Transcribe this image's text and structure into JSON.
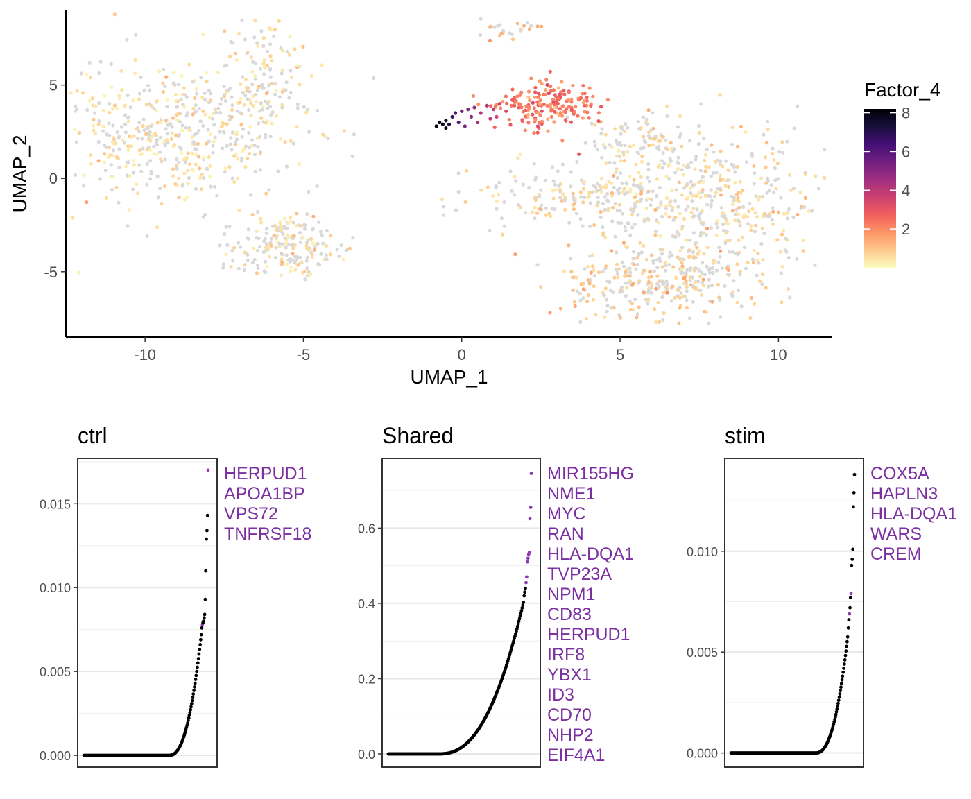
{
  "chart_data": [
    {
      "type": "scatter",
      "name": "umap",
      "xlabel": "UMAP_1",
      "ylabel": "UMAP_2",
      "xlim": [
        -12.5,
        11.7
      ],
      "ylim": [
        -8.5,
        9.0
      ],
      "xticks": [
        "-10",
        "-5",
        "0",
        "5",
        "10"
      ],
      "xtick_values": [
        -10,
        -5,
        0,
        5,
        10
      ],
      "yticks": [
        "-5",
        "0",
        "5"
      ],
      "ytick_values": [
        -5,
        0,
        5
      ],
      "grid": false,
      "legend": {
        "title": "Factor_4",
        "placement": "right",
        "ticks": [
          "2",
          "4",
          "6",
          "8"
        ],
        "tick_values": [
          2,
          4,
          6,
          8
        ],
        "range": [
          0,
          8.2
        ],
        "colors": [
          "#fcfdbf",
          "#fec98d",
          "#fd9567",
          "#f1605d",
          "#cd4071",
          "#9e2f7f",
          "#721f81",
          "#440f76",
          "#180f3d",
          "#000004"
        ]
      },
      "background_color": "#d9d9d9",
      "clusters": [
        {
          "cx": -9.0,
          "cy": 2.5,
          "sx": 2.0,
          "sy": 1.8,
          "n": 520,
          "factor_mean": 0.15
        },
        {
          "cx": -6.2,
          "cy": 5.5,
          "sx": 0.8,
          "sy": 2.0,
          "n": 120,
          "factor_mean": 0.2
        },
        {
          "cx": -5.6,
          "cy": -3.6,
          "sx": 0.9,
          "sy": 0.9,
          "n": 200,
          "factor_mean": 0.2
        },
        {
          "cx": 1.5,
          "cy": 8.0,
          "sx": 0.6,
          "sy": 0.3,
          "n": 25,
          "factor_mean": 0.8
        },
        {
          "cx": 6.3,
          "cy": -5.5,
          "sx": 1.6,
          "sy": 1.0,
          "n": 320,
          "factor_mean": 0.5
        },
        {
          "cx": 8.0,
          "cy": -1.0,
          "sx": 1.7,
          "sy": 1.9,
          "n": 400,
          "factor_mean": 0.3
        },
        {
          "cx": 3.8,
          "cy": -1.0,
          "sx": 1.8,
          "sy": 0.8,
          "n": 200,
          "factor_mean": 0.3
        },
        {
          "cx": 5.5,
          "cy": 2.0,
          "sx": 1.0,
          "sy": 0.8,
          "n": 90,
          "factor_mean": 0.3
        }
      ],
      "high_points": [
        {
          "x": -0.8,
          "y": 2.8,
          "v": 8.0
        },
        {
          "x": -0.6,
          "y": 2.9,
          "v": 7.8
        },
        {
          "x": -0.5,
          "y": 3.1,
          "v": 7.5
        },
        {
          "x": -0.7,
          "y": 3.0,
          "v": 7.9
        },
        {
          "x": -0.4,
          "y": 2.9,
          "v": 7.2
        },
        {
          "x": -0.3,
          "y": 3.3,
          "v": 6.8
        },
        {
          "x": -0.5,
          "y": 2.7,
          "v": 7.6
        },
        {
          "x": -0.2,
          "y": 3.5,
          "v": 6.2
        },
        {
          "x": 0.0,
          "y": 3.6,
          "v": 5.5
        },
        {
          "x": -0.1,
          "y": 3.0,
          "v": 6.0
        },
        {
          "x": 0.2,
          "y": 3.7,
          "v": 5.0
        },
        {
          "x": 0.4,
          "y": 3.8,
          "v": 4.6
        },
        {
          "x": 0.3,
          "y": 3.3,
          "v": 4.8
        },
        {
          "x": 0.6,
          "y": 3.5,
          "v": 4.2
        },
        {
          "x": 0.8,
          "y": 3.9,
          "v": 4.0
        },
        {
          "x": 1.0,
          "y": 3.7,
          "v": 3.8
        },
        {
          "x": 1.2,
          "y": 4.0,
          "v": 3.6
        },
        {
          "x": 1.4,
          "y": 3.6,
          "v": 3.4
        },
        {
          "x": 0.9,
          "y": 3.2,
          "v": 3.9
        },
        {
          "x": 1.6,
          "y": 4.2,
          "v": 3.0
        },
        {
          "x": 1.8,
          "y": 3.8,
          "v": 2.8
        },
        {
          "x": 0.1,
          "y": 2.8,
          "v": 5.2
        },
        {
          "x": 0.5,
          "y": 3.0,
          "v": 4.5
        },
        {
          "x": 1.1,
          "y": 3.3,
          "v": 3.5
        },
        {
          "x": 2.4,
          "y": 2.8,
          "v": 3.2
        },
        {
          "x": 3.7,
          "y": 1.3,
          "v": 3.0
        }
      ],
      "orange_cluster": {
        "cx": 2.8,
        "cy": 4.0,
        "sx": 0.8,
        "sy": 0.6,
        "n": 180,
        "factor_mean": 2.2
      }
    },
    {
      "type": "scatter",
      "name": "ctrl",
      "title": "ctrl",
      "ylim": [
        -0.0007,
        0.0177
      ],
      "yticks": [
        "0.000",
        "0.005",
        "0.010",
        "0.015"
      ],
      "ytick_values": [
        0,
        0.005,
        0.01,
        0.015
      ],
      "grid": true,
      "n_points": 220,
      "zero_fraction": 0.68,
      "top_values": [
        0.017,
        0.0143,
        0.0134,
        0.0129,
        0.011,
        0.0093,
        0.0084,
        0.0082,
        0.008,
        0.0079,
        0.0078,
        0.0076
      ],
      "highlighted_ranks": [
        0,
        10
      ],
      "curve_max": 0.0075,
      "genes": [
        "HERPUD1",
        "APOA1BP",
        "VPS72",
        "TNFRSF18"
      ]
    },
    {
      "type": "scatter",
      "name": "shared",
      "title": "Shared",
      "ylim": [
        -0.035,
        0.785
      ],
      "yticks": [
        "0.0",
        "0.2",
        "0.4",
        "0.6"
      ],
      "ytick_values": [
        0,
        0.2,
        0.4,
        0.6
      ],
      "grid": true,
      "n_points": 220,
      "zero_fraction": 0.35,
      "top_values": [
        0.745,
        0.655,
        0.625,
        0.535,
        0.53,
        0.52,
        0.51,
        0.47,
        0.455,
        0.44,
        0.43,
        0.42
      ],
      "highlighted_ranks": [
        0,
        1,
        2,
        3,
        4,
        5,
        6,
        7,
        8
      ],
      "curve_max": 0.41,
      "genes": [
        "MIR155HG",
        "NME1",
        "MYC",
        "RAN",
        "HLA-DQA1",
        "TVP23A",
        "NPM1",
        "CD83",
        "HERPUD1",
        "IRF8",
        "YBX1",
        "ID3",
        "CD70",
        "NHP2",
        "EIF4A1"
      ]
    },
    {
      "type": "scatter",
      "name": "stim",
      "title": "stim",
      "ylim": [
        -0.0007,
        0.0146
      ],
      "yticks": [
        "0.000",
        "0.005",
        "0.010"
      ],
      "ytick_values": [
        0,
        0.005,
        0.01
      ],
      "grid": true,
      "n_points": 220,
      "zero_fraction": 0.68,
      "top_values": [
        0.0138,
        0.0129,
        0.0122,
        0.0101,
        0.0096,
        0.0093,
        0.0079,
        0.0077,
        0.0072,
        0.0069,
        0.0066,
        0.0062
      ],
      "highlighted_ranks": [
        6,
        9
      ],
      "curve_max": 0.006,
      "genes": [
        "COX5A",
        "HAPLN3",
        "HLA-DQA1",
        "WARS",
        "CREM"
      ]
    }
  ]
}
